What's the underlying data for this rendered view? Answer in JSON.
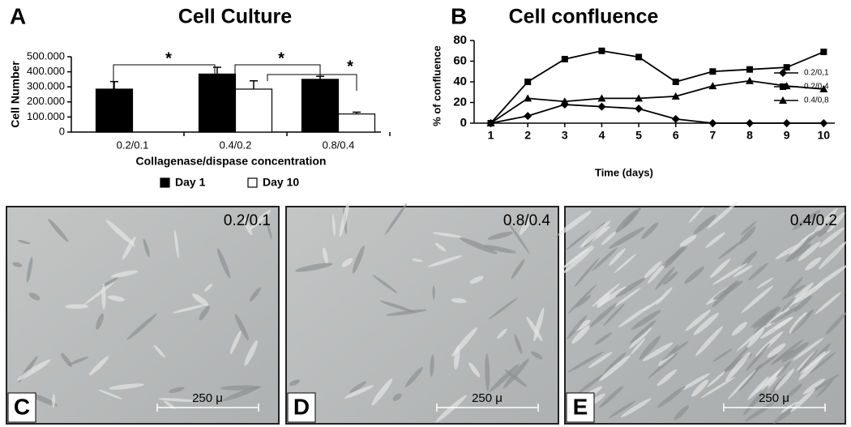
{
  "chart_data": [
    {
      "type": "bar",
      "panel": "A",
      "title": "Cell Culture",
      "x_label": "Collagenase/dispase concentration",
      "y_label": "Cell Number",
      "categories": [
        "0.2/0.1",
        "0.4/0.2",
        "0.8/0.4"
      ],
      "series": [
        {
          "name": "Day 1",
          "color": "#000000",
          "values": [
            285000,
            385000,
            350000
          ],
          "errors": [
            50000,
            45000,
            20000
          ]
        },
        {
          "name": "Day 10",
          "color": "#ffffff",
          "values": [
            null,
            285000,
            120000
          ],
          "errors": [
            null,
            55000,
            12000
          ]
        }
      ],
      "ylim": [
        0,
        500000
      ],
      "yticks": [
        {
          "value": 0,
          "label": "0"
        },
        {
          "value": 100000,
          "label": "100.000"
        },
        {
          "value": 200000,
          "label": "200.000"
        },
        {
          "value": 300000,
          "label": "300.000"
        },
        {
          "value": 400000,
          "label": "400.000"
        },
        {
          "value": 500000,
          "label": "500.000"
        }
      ],
      "annotations": [
        "*",
        "*",
        "*"
      ],
      "legend": "bottom"
    },
    {
      "type": "line",
      "panel": "B",
      "title": "Cell confluence",
      "x_label": "Time (days)",
      "y_label": "% of confluence",
      "x": [
        1,
        2,
        3,
        4,
        5,
        6,
        7,
        8,
        9,
        10
      ],
      "series": [
        {
          "name": "0.2/0,1",
          "color": "#000000",
          "marker": "diamond",
          "values": [
            0,
            7,
            18,
            16,
            14,
            4,
            0,
            0,
            0,
            0
          ]
        },
        {
          "name": "0.2/0,4",
          "color": "#000000",
          "marker": "square",
          "values": [
            0,
            40,
            62,
            70,
            64,
            40,
            50,
            52,
            54,
            69
          ]
        },
        {
          "name": "0.4/0,8",
          "color": "#000000",
          "marker": "triangle",
          "values": [
            0,
            24,
            21,
            24,
            24,
            26,
            36,
            41,
            36,
            33
          ]
        }
      ],
      "xlim": [
        0.55,
        10.3
      ],
      "xticks": [
        1,
        2,
        3,
        4,
        5,
        6,
        7,
        8,
        9,
        10
      ],
      "ylim": [
        0,
        80
      ],
      "yticks": [
        0,
        20,
        40,
        60,
        80
      ],
      "legend": "right"
    }
  ],
  "micrographs": [
    {
      "letter": "C",
      "label": "0.2/0.1",
      "scale_bar": "250 μ"
    },
    {
      "letter": "D",
      "label": "0.8/0.4",
      "scale_bar": "250 μ"
    },
    {
      "letter": "E",
      "label": "0.4/0.2",
      "scale_bar": "250 μ"
    }
  ]
}
